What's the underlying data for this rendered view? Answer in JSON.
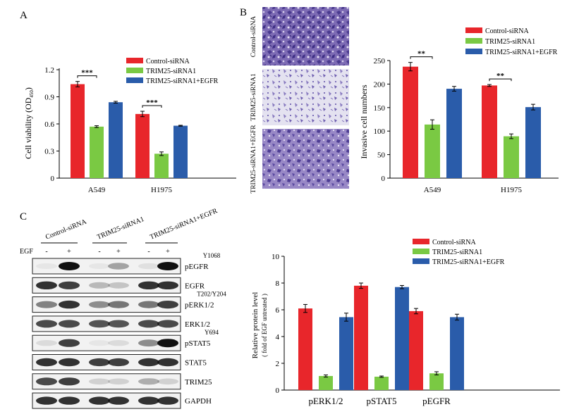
{
  "panels": {
    "a": {
      "letter": "A"
    },
    "b": {
      "letter": "B"
    },
    "c": {
      "letter": "C"
    }
  },
  "colors": {
    "control": "#e8262b",
    "trim25": "#7ac943",
    "trim25_egfr": "#2a5caa"
  },
  "micrographs": {
    "labels": [
      "Control-siRNA",
      "TRIM25-siRNA1",
      "TRIM25-siRNA1+EGFR"
    ]
  },
  "blot": {
    "groups": [
      "Control-siRNA",
      "TRIM25-siRNA1",
      "TRIM25-siRNA1+EGFR"
    ],
    "egf_label": "EGF",
    "egf_states": [
      "-",
      "+",
      "-",
      "+",
      "-",
      "+"
    ],
    "rows": [
      {
        "label": "pEGFR",
        "site": "Y1068",
        "bands": [
          0.05,
          1.0,
          0.05,
          0.35,
          0.08,
          1.0
        ]
      },
      {
        "label": "EGFR",
        "site": "",
        "bands": [
          0.85,
          0.8,
          0.25,
          0.2,
          0.85,
          0.85
        ]
      },
      {
        "label": "pERK1/2",
        "site": "T202/Y204",
        "bands": [
          0.5,
          0.85,
          0.45,
          0.55,
          0.55,
          0.8
        ]
      },
      {
        "label": "ERK1/2",
        "site": "",
        "bands": [
          0.75,
          0.75,
          0.7,
          0.7,
          0.75,
          0.75
        ]
      },
      {
        "label": "pSTAT5",
        "site": "Y694",
        "bands": [
          0.1,
          0.8,
          0.05,
          0.1,
          0.45,
          1.0
        ]
      },
      {
        "label": "STAT5",
        "site": "",
        "bands": [
          0.85,
          0.85,
          0.8,
          0.8,
          0.85,
          0.85
        ]
      },
      {
        "label": "TRIM25",
        "site": "",
        "bands": [
          0.75,
          0.8,
          0.15,
          0.15,
          0.3,
          0.15
        ]
      },
      {
        "label": "GAPDH",
        "site": "",
        "bands": [
          0.85,
          0.85,
          0.85,
          0.85,
          0.85,
          0.85
        ]
      }
    ]
  },
  "chart_data": [
    {
      "panel": "A",
      "type": "bar",
      "categories": [
        "A549",
        "H1975"
      ],
      "series": [
        {
          "name": "Control-siRNA",
          "values": [
            1.04,
            0.71
          ],
          "errors": [
            0.03,
            0.03
          ]
        },
        {
          "name": "TRIM25-siRNA1",
          "values": [
            0.57,
            0.27
          ],
          "errors": [
            0.01,
            0.02
          ]
        },
        {
          "name": "TRIM25-siRNA1+EGFR",
          "values": [
            0.84,
            0.58
          ],
          "errors": [
            0.01,
            0.005
          ]
        }
      ],
      "ylabel_main": "Cell viability (OD",
      "ylabel_sub": "450",
      "ylabel_end": ")",
      "ylim": [
        0,
        1.2
      ],
      "yticks": [
        "0",
        "0.3",
        "0.6",
        "0.9",
        "1.2"
      ],
      "legend_position": "top-right",
      "significance": [
        {
          "category": "A549",
          "label": "***"
        },
        {
          "category": "H1975",
          "label": "***"
        }
      ]
    },
    {
      "panel": "B",
      "type": "bar",
      "categories": [
        "A549",
        "H1975"
      ],
      "series": [
        {
          "name": "Control-siRNA",
          "values": [
            237,
            197
          ],
          "errors": [
            9,
            2
          ]
        },
        {
          "name": "TRIM25-siRNA1",
          "values": [
            114,
            89
          ],
          "errors": [
            10,
            5
          ]
        },
        {
          "name": "TRIM25-siRNA1+EGFR",
          "values": [
            190,
            151
          ],
          "errors": [
            5,
            6
          ]
        }
      ],
      "ylabel": "Invasive cell numbers",
      "ylim": [
        0,
        250
      ],
      "yticks": [
        "0",
        "50",
        "100",
        "150",
        "200",
        "250"
      ],
      "legend_position": "top-right",
      "significance": [
        {
          "category": "A549",
          "label": "**"
        },
        {
          "category": "H1975",
          "label": "**"
        }
      ]
    },
    {
      "panel": "C",
      "type": "bar",
      "categories": [
        "pERK1/2",
        "pSTAT5",
        "pEGFR"
      ],
      "series": [
        {
          "name": "Control-siRNA",
          "values": [
            6.1,
            7.8,
            5.9
          ],
          "errors": [
            0.3,
            0.2,
            0.2
          ]
        },
        {
          "name": "TRIM25-siRNA1",
          "values": [
            1.05,
            1.0,
            1.25
          ],
          "errors": [
            0.08,
            0.05,
            0.12
          ]
        },
        {
          "name": "TRIM25-siRNA1+EGFR",
          "values": [
            5.45,
            7.7,
            5.45
          ],
          "errors": [
            0.3,
            0.12,
            0.22
          ]
        }
      ],
      "ylabel": "Relative protein  level",
      "ylabel2": "( fold of EGF untreated )",
      "ylim": [
        0,
        10
      ],
      "yticks": [
        "0",
        "2",
        "4",
        "6",
        "8",
        "10"
      ],
      "legend_position": "top-right"
    }
  ]
}
